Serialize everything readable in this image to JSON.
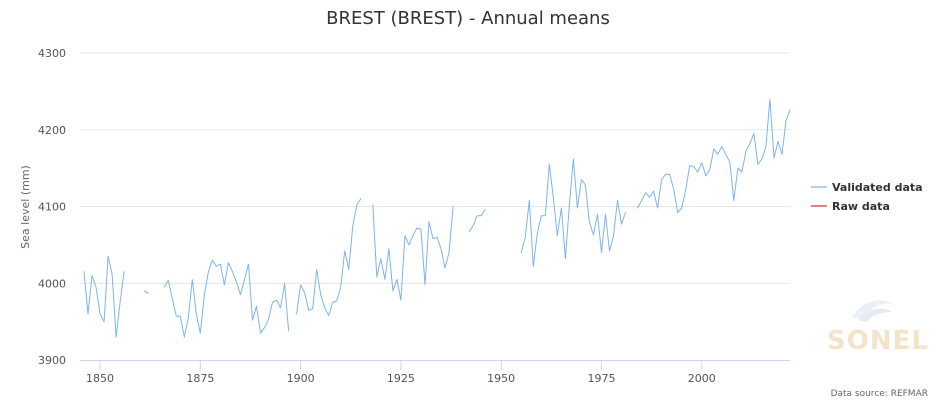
{
  "chart_data": {
    "type": "line",
    "title": "BREST (BREST) - Annual means",
    "xlabel": "",
    "ylabel": "Sea level (mm)",
    "xlim": [
      1845,
      2022
    ],
    "ylim": [
      3900,
      4300
    ],
    "xticks": [
      1850,
      1875,
      1900,
      1925,
      1950,
      1975,
      2000
    ],
    "yticks": [
      3900,
      4000,
      4100,
      4200,
      4300
    ],
    "grid": true,
    "legend": "right",
    "series": [
      {
        "name": "Validated data",
        "color": "#7cb5ec",
        "segments": [
          [
            [
              1846,
              4015
            ],
            [
              1847,
              3960
            ],
            [
              1848,
              4010
            ],
            [
              1849,
              3995
            ],
            [
              1850,
              3960
            ],
            [
              1851,
              3950
            ],
            [
              1852,
              4035
            ],
            [
              1853,
              4012
            ],
            [
              1854,
              3930
            ],
            [
              1855,
              3975
            ],
            [
              1856,
              4015
            ]
          ],
          [
            [
              1861,
              3990
            ],
            [
              1862,
              3987
            ]
          ],
          [
            [
              1866,
              3995
            ],
            [
              1867,
              4004
            ],
            [
              1868,
              3980
            ],
            [
              1869,
              3957
            ],
            [
              1870,
              3957
            ],
            [
              1871,
              3930
            ],
            [
              1872,
              3955
            ],
            [
              1873,
              4005
            ],
            [
              1874,
              3960
            ],
            [
              1875,
              3935
            ],
            [
              1876,
              3985
            ],
            [
              1877,
              4015
            ],
            [
              1878,
              4030
            ],
            [
              1879,
              4022
            ],
            [
              1880,
              4025
            ],
            [
              1881,
              3998
            ],
            [
              1882,
              4027
            ],
            [
              1883,
              4015
            ],
            [
              1884,
              4002
            ],
            [
              1885,
              3985
            ],
            [
              1886,
              4005
            ],
            [
              1887,
              4025
            ],
            [
              1888,
              3952
            ],
            [
              1889,
              3970
            ],
            [
              1890,
              3935
            ],
            [
              1891,
              3942
            ],
            [
              1892,
              3953
            ],
            [
              1893,
              3975
            ],
            [
              1894,
              3978
            ],
            [
              1895,
              3968
            ],
            [
              1896,
              4000
            ],
            [
              1897,
              3938
            ]
          ],
          [
            [
              1899,
              3960
            ],
            [
              1900,
              3998
            ],
            [
              1901,
              3988
            ],
            [
              1902,
              3965
            ],
            [
              1903,
              3967
            ],
            [
              1904,
              4018
            ],
            [
              1905,
              3985
            ],
            [
              1906,
              3968
            ],
            [
              1907,
              3958
            ],
            [
              1908,
              3975
            ],
            [
              1909,
              3977
            ],
            [
              1910,
              3995
            ],
            [
              1911,
              4042
            ],
            [
              1912,
              4018
            ],
            [
              1913,
              4075
            ],
            [
              1914,
              4102
            ],
            [
              1915,
              4110
            ]
          ],
          [
            [
              1918,
              4102
            ],
            [
              1919,
              4008
            ],
            [
              1920,
              4032
            ],
            [
              1921,
              4005
            ],
            [
              1922,
              4045
            ],
            [
              1923,
              3990
            ],
            [
              1924,
              4005
            ],
            [
              1925,
              3978
            ],
            [
              1926,
              4062
            ],
            [
              1927,
              4050
            ],
            [
              1928,
              4062
            ],
            [
              1929,
              4072
            ],
            [
              1930,
              4070
            ],
            [
              1931,
              3998
            ],
            [
              1932,
              4080
            ],
            [
              1933,
              4058
            ],
            [
              1934,
              4060
            ],
            [
              1935,
              4045
            ],
            [
              1936,
              4020
            ],
            [
              1937,
              4040
            ],
            [
              1938,
              4100
            ]
          ],
          [
            [
              1942,
              4067
            ],
            [
              1943,
              4075
            ],
            [
              1944,
              4088
            ],
            [
              1945,
              4088
            ],
            [
              1946,
              4096
            ]
          ],
          [
            [
              1955,
              4040
            ],
            [
              1956,
              4060
            ],
            [
              1957,
              4108
            ],
            [
              1958,
              4022
            ],
            [
              1959,
              4065
            ],
            [
              1960,
              4088
            ],
            [
              1961,
              4088
            ],
            [
              1962,
              4155
            ],
            [
              1963,
              4112
            ],
            [
              1964,
              4062
            ],
            [
              1965,
              4098
            ],
            [
              1966,
              4032
            ],
            [
              1967,
              4103
            ],
            [
              1968,
              4162
            ],
            [
              1969,
              4098
            ],
            [
              1970,
              4135
            ],
            [
              1971,
              4128
            ],
            [
              1972,
              4080
            ],
            [
              1973,
              4063
            ],
            [
              1974,
              4090
            ],
            [
              1975,
              4040
            ],
            [
              1976,
              4090
            ],
            [
              1977,
              4042
            ],
            [
              1978,
              4062
            ],
            [
              1979,
              4108
            ],
            [
              1980,
              4077
            ],
            [
              1981,
              4092
            ]
          ],
          [
            [
              1984,
              4098
            ],
            [
              1985,
              4108
            ],
            [
              1986,
              4118
            ],
            [
              1987,
              4112
            ],
            [
              1988,
              4120
            ],
            [
              1989,
              4098
            ],
            [
              1990,
              4135
            ],
            [
              1991,
              4142
            ],
            [
              1992,
              4142
            ],
            [
              1993,
              4122
            ],
            [
              1994,
              4092
            ],
            [
              1995,
              4098
            ],
            [
              1996,
              4122
            ],
            [
              1997,
              4153
            ],
            [
              1998,
              4152
            ],
            [
              1999,
              4145
            ],
            [
              2000,
              4157
            ],
            [
              2001,
              4140
            ],
            [
              2002,
              4148
            ],
            [
              2003,
              4175
            ],
            [
              2004,
              4168
            ],
            [
              2005,
              4178
            ],
            [
              2006,
              4168
            ],
            [
              2007,
              4158
            ],
            [
              2008,
              4108
            ],
            [
              2009,
              4150
            ],
            [
              2010,
              4145
            ],
            [
              2011,
              4172
            ],
            [
              2012,
              4182
            ],
            [
              2013,
              4195
            ],
            [
              2014,
              4155
            ],
            [
              2015,
              4162
            ],
            [
              2016,
              4178
            ],
            [
              2017,
              4240
            ],
            [
              2018,
              4163
            ],
            [
              2019,
              4185
            ],
            [
              2020,
              4168
            ],
            [
              2021,
              4212
            ],
            [
              2022,
              4226
            ]
          ]
        ]
      },
      {
        "name": "Raw data",
        "color": "#c0392b",
        "segments": []
      }
    ]
  },
  "watermark": {
    "text": "SONEL",
    "color": "#f1e4c8"
  },
  "credits": "Data source: REFMAR"
}
